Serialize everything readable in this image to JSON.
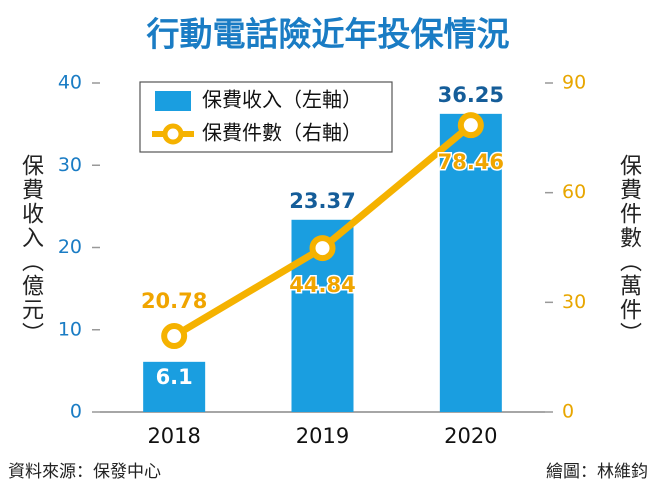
{
  "chart_data": {
    "type": "combo",
    "title": "行動電話險近年投保情況",
    "categories": [
      "2018",
      "2019",
      "2020"
    ],
    "series": [
      {
        "name": "保費收入（左軸）",
        "type": "bar",
        "color": "#1a9ee0",
        "values": [
          6.1,
          23.37,
          36.25
        ]
      },
      {
        "name": "保費件數（右軸）",
        "type": "line",
        "color": "#f5b200",
        "axis": "y2",
        "values": [
          20.78,
          44.84,
          78.46
        ]
      }
    ],
    "ylabel": "保費收入（億元）",
    "y2label": "保費件數（萬件）",
    "ylim": [
      0,
      40
    ],
    "yticks": [
      0,
      10,
      20,
      30,
      40
    ],
    "y2lim": [
      0,
      90
    ],
    "y2ticks": [
      0,
      30,
      60,
      90
    ],
    "source": "資料來源：保發中心",
    "credit": "繪圖：林維鈞"
  }
}
